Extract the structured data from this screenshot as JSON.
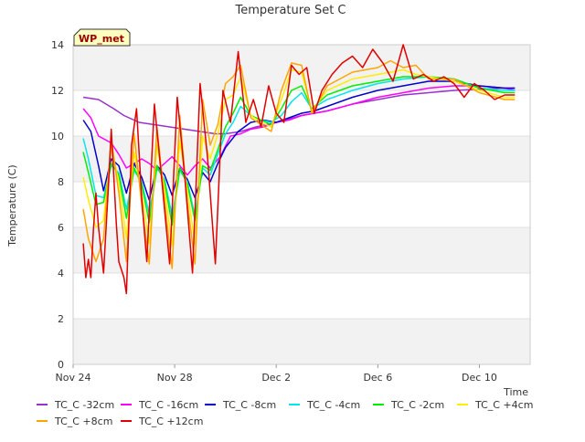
{
  "chart_data": {
    "type": "line",
    "title": "Temperature Set C",
    "xlabel": "Time",
    "ylabel": "Temperature (C)",
    "ylim": [
      0,
      14
    ],
    "xlim": [
      0,
      18
    ],
    "x_unit": "days since Nov 24",
    "yticks": [
      0,
      2,
      4,
      6,
      8,
      10,
      12,
      14
    ],
    "xticks": [
      {
        "value": 0,
        "label": "Nov 24"
      },
      {
        "value": 4,
        "label": "Nov 28"
      },
      {
        "value": 8,
        "label": "Dec 2"
      },
      {
        "value": 12,
        "label": "Dec 6"
      },
      {
        "value": 16,
        "label": "Dec 10"
      }
    ],
    "annotation": "WP_met",
    "legend_position": "bottom",
    "series": [
      {
        "name": "TC_C -32cm",
        "color": "#9932cc",
        "x": [
          0.4,
          1.0,
          1.6,
          2.0,
          2.6,
          3.2,
          3.8,
          4.4,
          5.0,
          5.6,
          6.0,
          6.6,
          7.2,
          8.0,
          9.0,
          10.0,
          11.0,
          12.0,
          13.0,
          14.0,
          15.0,
          16.0,
          16.8,
          17.4
        ],
        "y": [
          11.7,
          11.6,
          11.2,
          10.9,
          10.6,
          10.5,
          10.4,
          10.3,
          10.2,
          10.1,
          10.1,
          10.2,
          10.4,
          10.6,
          10.9,
          11.1,
          11.4,
          11.6,
          11.8,
          11.9,
          12.0,
          12.05,
          12.1,
          12.1
        ]
      },
      {
        "name": "TC_C -16cm",
        "color": "#ff00ff",
        "x": [
          0.4,
          0.7,
          1.0,
          1.5,
          1.8,
          2.1,
          2.4,
          2.7,
          3.0,
          3.3,
          3.6,
          3.9,
          4.2,
          4.5,
          4.8,
          5.1,
          5.4,
          5.8,
          6.2,
          6.6,
          7.0,
          7.5,
          8.0,
          8.5,
          9.0,
          9.5,
          10.0,
          11.0,
          12.0,
          13.0,
          14.0,
          15.0,
          16.0,
          17.0,
          17.4
        ],
        "y": [
          11.2,
          10.8,
          10.0,
          9.7,
          9.2,
          8.6,
          8.8,
          9.0,
          8.8,
          8.5,
          8.8,
          9.1,
          8.7,
          8.3,
          8.7,
          9.0,
          8.6,
          9.1,
          10.0,
          10.1,
          10.3,
          10.4,
          10.6,
          10.7,
          10.9,
          11.0,
          11.1,
          11.4,
          11.7,
          11.9,
          12.1,
          12.2,
          12.2,
          12.1,
          12.0
        ]
      },
      {
        "name": "TC_C -8cm",
        "color": "#0000cd",
        "x": [
          0.4,
          0.7,
          1.0,
          1.2,
          1.5,
          1.8,
          2.1,
          2.4,
          2.7,
          3.0,
          3.3,
          3.6,
          3.9,
          4.2,
          4.5,
          4.8,
          5.1,
          5.4,
          5.7,
          6.0,
          6.5,
          7.0,
          7.5,
          8.0,
          8.5,
          9.0,
          9.5,
          10.0,
          11.0,
          12.0,
          13.0,
          14.0,
          15.0,
          16.0,
          17.0,
          17.4
        ],
        "y": [
          10.7,
          10.2,
          8.7,
          7.6,
          9.0,
          8.7,
          7.5,
          8.8,
          8.2,
          7.2,
          8.7,
          8.3,
          7.4,
          8.6,
          8.1,
          7.3,
          8.4,
          8.0,
          8.8,
          9.5,
          10.2,
          10.6,
          10.7,
          10.6,
          10.8,
          11.0,
          11.1,
          11.3,
          11.7,
          12.0,
          12.2,
          12.4,
          12.4,
          12.2,
          12.1,
          12.1
        ]
      },
      {
        "name": "TC_C -4cm",
        "color": "#00e5ee",
        "x": [
          0.4,
          0.6,
          0.9,
          1.2,
          1.5,
          1.8,
          2.1,
          2.4,
          2.7,
          3.0,
          3.3,
          3.6,
          3.9,
          4.2,
          4.5,
          4.8,
          5.1,
          5.4,
          5.7,
          6.0,
          6.3,
          6.6,
          7.0,
          7.4,
          7.8,
          8.2,
          8.6,
          9.0,
          9.4,
          10.0,
          11.0,
          12.0,
          13.0,
          14.0,
          15.0,
          16.0,
          17.0,
          17.4
        ],
        "y": [
          9.9,
          9.0,
          7.4,
          7.3,
          8.7,
          8.4,
          6.8,
          8.5,
          8.0,
          6.6,
          8.6,
          8.1,
          6.5,
          8.5,
          8.0,
          6.5,
          8.6,
          8.3,
          9.2,
          10.1,
          10.6,
          11.3,
          10.9,
          10.7,
          10.6,
          10.9,
          11.5,
          11.9,
          11.2,
          11.6,
          12.0,
          12.3,
          12.5,
          12.6,
          12.5,
          12.1,
          12.0,
          12.0
        ]
      },
      {
        "name": "TC_C -2cm",
        "color": "#00ee00",
        "x": [
          0.4,
          0.6,
          0.9,
          1.2,
          1.5,
          1.8,
          2.1,
          2.4,
          2.7,
          3.0,
          3.3,
          3.6,
          3.9,
          4.2,
          4.5,
          4.8,
          5.1,
          5.4,
          5.7,
          6.0,
          6.3,
          6.6,
          7.0,
          7.4,
          7.8,
          8.2,
          8.6,
          9.0,
          9.4,
          10.0,
          11.0,
          12.0,
          13.0,
          14.0,
          15.0,
          16.0,
          17.0,
          17.4
        ],
        "y": [
          9.3,
          8.4,
          7.0,
          7.1,
          8.8,
          8.3,
          6.4,
          8.6,
          7.9,
          6.2,
          8.7,
          8.0,
          6.1,
          8.6,
          7.9,
          6.3,
          8.7,
          8.5,
          9.4,
          10.4,
          11.0,
          11.7,
          10.9,
          10.7,
          10.5,
          11.2,
          12.0,
          12.2,
          11.2,
          11.8,
          12.2,
          12.4,
          12.6,
          12.6,
          12.5,
          12.1,
          11.9,
          11.9
        ]
      },
      {
        "name": "TC_C +4cm",
        "color": "#ffee00",
        "x": [
          0.4,
          0.6,
          0.9,
          1.2,
          1.5,
          1.8,
          2.1,
          2.4,
          2.7,
          3.0,
          3.3,
          3.6,
          3.9,
          4.2,
          4.5,
          4.8,
          5.1,
          5.4,
          5.7,
          6.0,
          6.3,
          6.6,
          7.0,
          7.4,
          7.8,
          8.2,
          8.6,
          9.0,
          9.4,
          10.0,
          11.0,
          12.0,
          13.0,
          13.5,
          14.0,
          15.0,
          16.0,
          17.0,
          17.4
        ],
        "y": [
          8.2,
          7.2,
          6.0,
          6.3,
          9.5,
          8.0,
          5.5,
          9.3,
          7.5,
          5.3,
          9.6,
          7.7,
          5.2,
          9.8,
          7.6,
          5.3,
          10.0,
          9.0,
          10.1,
          11.6,
          11.8,
          12.6,
          10.9,
          10.6,
          10.4,
          11.6,
          12.9,
          12.8,
          11.1,
          12.0,
          12.5,
          12.7,
          12.9,
          12.7,
          12.6,
          12.4,
          12.0,
          11.7,
          11.7
        ]
      },
      {
        "name": "TC_C +8cm",
        "color": "#ffa500",
        "x": [
          0.4,
          0.6,
          0.9,
          1.2,
          1.5,
          1.8,
          2.1,
          2.4,
          2.7,
          3.0,
          3.3,
          3.6,
          3.9,
          4.2,
          4.5,
          4.8,
          5.1,
          5.4,
          5.7,
          6.0,
          6.3,
          6.6,
          7.0,
          7.4,
          7.8,
          8.2,
          8.6,
          9.0,
          9.4,
          10.0,
          11.0,
          12.0,
          12.5,
          13.0,
          13.5,
          14.0,
          15.0,
          16.0,
          17.0,
          17.4
        ],
        "y": [
          6.8,
          5.5,
          4.5,
          5.5,
          9.9,
          7.5,
          4.5,
          10.1,
          7.0,
          4.4,
          10.4,
          7.2,
          4.2,
          10.9,
          7.1,
          4.4,
          11.6,
          9.6,
          10.5,
          12.3,
          12.6,
          13.1,
          10.8,
          10.5,
          10.2,
          12.0,
          13.2,
          13.1,
          11.0,
          12.2,
          12.8,
          13.0,
          13.3,
          13.0,
          13.1,
          12.5,
          12.5,
          11.9,
          11.6,
          11.6
        ]
      },
      {
        "name": "TC_C +12cm",
        "color": "#e00000",
        "x": [
          0.4,
          0.5,
          0.6,
          0.7,
          0.8,
          0.9,
          1.0,
          1.2,
          1.4,
          1.5,
          1.7,
          1.8,
          2.0,
          2.1,
          2.3,
          2.5,
          2.7,
          2.9,
          3.2,
          3.5,
          3.8,
          4.1,
          4.4,
          4.7,
          5.0,
          5.3,
          5.6,
          5.9,
          6.2,
          6.5,
          6.8,
          7.1,
          7.4,
          7.7,
          8.0,
          8.3,
          8.6,
          8.9,
          9.2,
          9.5,
          9.8,
          10.2,
          10.6,
          11.0,
          11.4,
          11.8,
          12.2,
          12.6,
          13.0,
          13.4,
          13.8,
          14.2,
          14.6,
          15.0,
          15.4,
          15.8,
          16.2,
          16.6,
          17.0,
          17.4
        ],
        "y": [
          5.3,
          3.8,
          4.6,
          3.8,
          5.9,
          7.5,
          6.0,
          4.0,
          8.0,
          10.3,
          6.2,
          4.5,
          3.8,
          3.1,
          9.6,
          11.2,
          7.3,
          4.5,
          11.4,
          8.0,
          4.4,
          11.7,
          8.2,
          4.0,
          12.3,
          9.0,
          4.4,
          12.0,
          10.6,
          13.7,
          10.6,
          11.6,
          10.4,
          12.2,
          11.0,
          10.6,
          13.1,
          12.7,
          13.0,
          11.0,
          12.0,
          12.7,
          13.2,
          13.5,
          13.0,
          13.8,
          13.2,
          12.4,
          14.0,
          12.5,
          12.7,
          12.4,
          12.6,
          12.3,
          11.7,
          12.3,
          12.0,
          11.6,
          11.8,
          11.8
        ]
      }
    ]
  }
}
